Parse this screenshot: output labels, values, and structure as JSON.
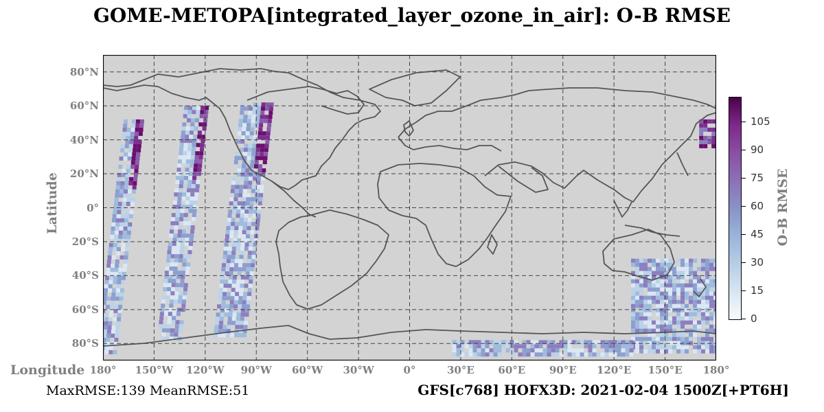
{
  "title": "GOME-METOPA[integrated_layer_ozone_in_air]: O-B RMSE",
  "axes": {
    "ylabel": "Latitude",
    "xlabel": "Longitude",
    "lat_ticks": [
      "80°N",
      "60°N",
      "40°N",
      "20°N",
      "0°",
      "20°S",
      "40°S",
      "60°S",
      "80°S"
    ],
    "lon_ticks": [
      "180°",
      "150°W",
      "120°W",
      "90°W",
      "60°W",
      "30°W",
      "0°",
      "30°E",
      "60°E",
      "90°E",
      "120°E",
      "150°E",
      "180°"
    ],
    "lat_values": [
      80,
      60,
      40,
      20,
      0,
      -20,
      -40,
      -60,
      -80
    ],
    "lon_values": [
      -180,
      -150,
      -120,
      -90,
      -60,
      -30,
      0,
      30,
      60,
      90,
      120,
      150,
      180
    ],
    "lat_range": [
      -90,
      90
    ],
    "lon_range": [
      -180,
      180
    ],
    "grid": true
  },
  "colorbar": {
    "label": "O-B RMSE",
    "ticks": [
      "0",
      "15",
      "30",
      "45",
      "60",
      "75",
      "90",
      "105"
    ],
    "tick_values": [
      0,
      15,
      30,
      45,
      60,
      75,
      90,
      105
    ],
    "range": [
      0,
      118
    ],
    "colormap": "BuPu"
  },
  "stats_text": "MaxRMSE:139 MeanRMSE:51",
  "run_text": "GFS[c768] HOFX3D: 2021-02-04 1500Z[+PT6H]",
  "colors": {
    "background": "#d3d3d3",
    "coast": "#555555",
    "grid": "#444444"
  },
  "chart_data": {
    "type": "heatmap",
    "title": "GOME-METOPA[integrated_layer_ozone_in_air]: O-B RMSE",
    "xlabel": "Longitude",
    "ylabel": "Latitude",
    "swaths": [
      {
        "lon_start": -180,
        "lon_end": -158,
        "lat_top": 52,
        "lat_bottom": -85
      },
      {
        "lon_start": -150,
        "lon_end": -118,
        "lat_top": 60,
        "lat_bottom": -78
      },
      {
        "lon_start": -120,
        "lon_end": -82,
        "lat_top": 62,
        "lat_bottom": -75
      },
      {
        "lon_start": 170,
        "lon_end": 180,
        "lat_top": 52,
        "lat_bottom": 36
      },
      {
        "lon_start": 130,
        "lon_end": 180,
        "lat_top": -30,
        "lat_bottom": -85
      },
      {
        "lon_start": 25,
        "lon_end": 130,
        "lat_top": -78,
        "lat_bottom": -86
      }
    ],
    "max_rmse": 139,
    "mean_rmse": 51
  }
}
